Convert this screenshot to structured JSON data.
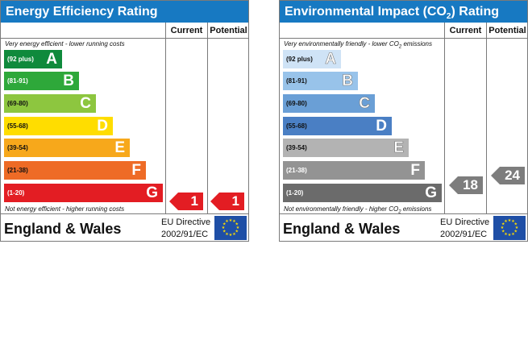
{
  "energy": {
    "title": "Energy Efficiency Rating",
    "col_current": "Current",
    "col_potential": "Potential",
    "top_note": "Very energy efficient - lower running costs",
    "bottom_note": "Not energy efficient - higher running costs",
    "bands": [
      {
        "range": "(92 plus)",
        "letter": "A",
        "color": "#0f8a3c"
      },
      {
        "range": "(81-91)",
        "letter": "B",
        "color": "#2ea83a"
      },
      {
        "range": "(69-80)",
        "letter": "C",
        "color": "#8dc63f"
      },
      {
        "range": "(55-68)",
        "letter": "D",
        "color": "#ffdd00"
      },
      {
        "range": "(39-54)",
        "letter": "E",
        "color": "#f7a81b"
      },
      {
        "range": "(21-38)",
        "letter": "F",
        "color": "#ee6b26"
      },
      {
        "range": "(1-20)",
        "letter": "G",
        "color": "#e31d23"
      }
    ],
    "current": "1",
    "potential": "1",
    "arrow_color": "#e31d23",
    "country": "England & Wales",
    "directive_line1": "EU Directive",
    "directive_line2": "2002/91/EC"
  },
  "environment": {
    "title_pre": "Environmental Impact (CO",
    "title_sub": "2",
    "title_post": ") Rating",
    "col_current": "Current",
    "col_potential": "Potential",
    "top_note_pre": "Very environmentally friendly - lower CO",
    "top_note_sub": "2",
    "top_note_post": " emissions",
    "bottom_note_pre": "Not environmentally friendly - higher CO",
    "bottom_note_sub": "2",
    "bottom_note_post": " emissions",
    "bands": [
      {
        "range": "(92 plus)",
        "letter": "A",
        "color": "#cfe3f6"
      },
      {
        "range": "(81-91)",
        "letter": "B",
        "color": "#98c3ea"
      },
      {
        "range": "(69-80)",
        "letter": "C",
        "color": "#6a9fd6"
      },
      {
        "range": "(55-68)",
        "letter": "D",
        "color": "#4a7fc4"
      },
      {
        "range": "(39-54)",
        "letter": "E",
        "color": "#b3b3b3"
      },
      {
        "range": "(21-38)",
        "letter": "F",
        "color": "#939393"
      },
      {
        "range": "(1-20)",
        "letter": "G",
        "color": "#6b6b6b"
      }
    ],
    "current": "18",
    "potential": "24",
    "arrow_color": "#7d7d7d",
    "country": "England & Wales",
    "directive_line1": "EU Directive",
    "directive_line2": "2002/91/EC"
  }
}
